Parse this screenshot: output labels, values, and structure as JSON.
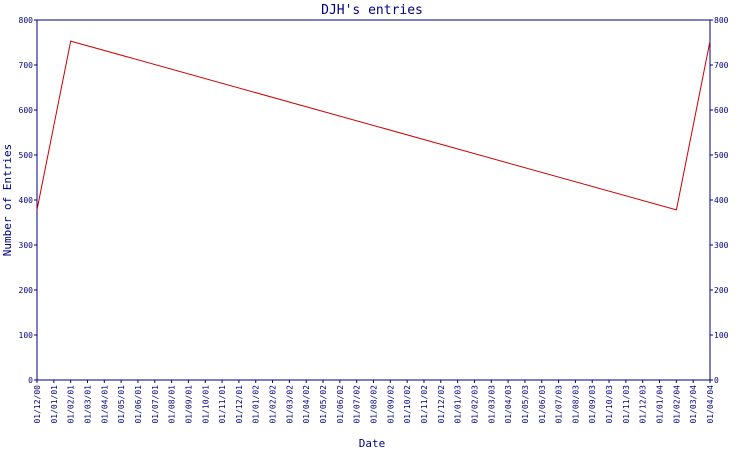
{
  "chart_data": {
    "type": "line",
    "title": "DJH's entries",
    "xlabel": "Date",
    "ylabel": "Number of Entries",
    "ylim": [
      0,
      800
    ],
    "yticks": [
      0,
      100,
      200,
      300,
      400,
      500,
      600,
      700,
      800
    ],
    "right_axis": true,
    "grid": false,
    "categories": [
      "01/12/00",
      "01/01/01",
      "01/02/01",
      "01/03/01",
      "01/04/01",
      "01/05/01",
      "01/06/01",
      "01/07/01",
      "01/08/01",
      "01/09/01",
      "01/10/01",
      "01/11/01",
      "01/12/01",
      "01/01/02",
      "01/02/02",
      "01/03/02",
      "01/04/02",
      "01/05/02",
      "01/06/02",
      "01/07/02",
      "01/08/02",
      "01/09/02",
      "01/10/02",
      "01/11/02",
      "01/12/02",
      "01/01/03",
      "01/02/03",
      "01/03/03",
      "01/04/03",
      "01/05/03",
      "01/06/03",
      "01/07/03",
      "01/08/03",
      "01/09/03",
      "01/10/03",
      "01/11/03",
      "01/12/03",
      "01/01/04",
      "01/02/04",
      "01/03/04",
      "01/04/04"
    ],
    "series": [
      {
        "name": "",
        "color": "#cc0000",
        "points": [
          {
            "x": "01/12/00",
            "y": 378
          },
          {
            "x": "01/02/01",
            "y": 753
          },
          {
            "x": "01/02/04",
            "y": 378
          },
          {
            "x": "01/04/04",
            "y": 753
          }
        ]
      }
    ]
  },
  "colors": {
    "axis": "#000080",
    "line": "#cc0000",
    "background": "#ffffff"
  }
}
